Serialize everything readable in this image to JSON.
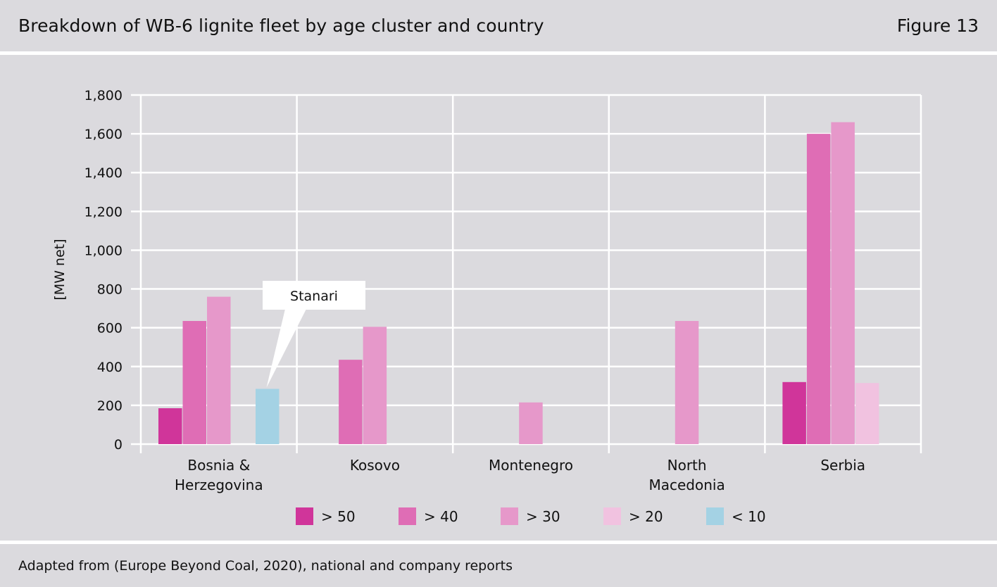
{
  "header": {
    "title": "Breakdown of WB-6 lignite fleet by age cluster and country",
    "figure_label": "Figure 13"
  },
  "footer": {
    "source": "Adapted from (Europe Beyond Coal, 2020), national and company reports"
  },
  "chart_data": {
    "type": "bar",
    "title": "Breakdown of WB-6 lignite fleet by age cluster and country",
    "ylabel": "[MW net]",
    "xlabel": "",
    "ylim": [
      0,
      1800
    ],
    "yticks": [
      0,
      200,
      400,
      600,
      800,
      1000,
      1200,
      1400,
      1600,
      1800
    ],
    "ytick_labels": [
      "0",
      "200",
      "400",
      "600",
      "800",
      "1,000",
      "1,200",
      "1,400",
      "1,600",
      "1,800"
    ],
    "categories": [
      [
        "Bosnia &",
        "Herzegovina"
      ],
      [
        "Kosovo"
      ],
      [
        "Montenegro"
      ],
      [
        "North",
        "Macedonia"
      ],
      [
        "Serbia"
      ]
    ],
    "series": [
      {
        "name": "> 50",
        "color": "#d0359a",
        "values": [
          185,
          0,
          0,
          0,
          320
        ]
      },
      {
        "name": "> 40",
        "color": "#df6db5",
        "values": [
          635,
          435,
          0,
          0,
          1600
        ]
      },
      {
        "name": "> 30",
        "color": "#e698ca",
        "values": [
          760,
          605,
          215,
          635,
          1660
        ]
      },
      {
        "name": "> 20",
        "color": "#f1c2e0",
        "values": [
          0,
          0,
          0,
          0,
          315
        ]
      },
      {
        "name": "< 10",
        "color": "#a4d2e4",
        "values": [
          285,
          0,
          0,
          0,
          0
        ]
      }
    ],
    "grid": true,
    "legend_position": "bottom",
    "annotations": [
      {
        "text": "Stanari",
        "category_index": 0,
        "series_index": 4
      }
    ]
  }
}
